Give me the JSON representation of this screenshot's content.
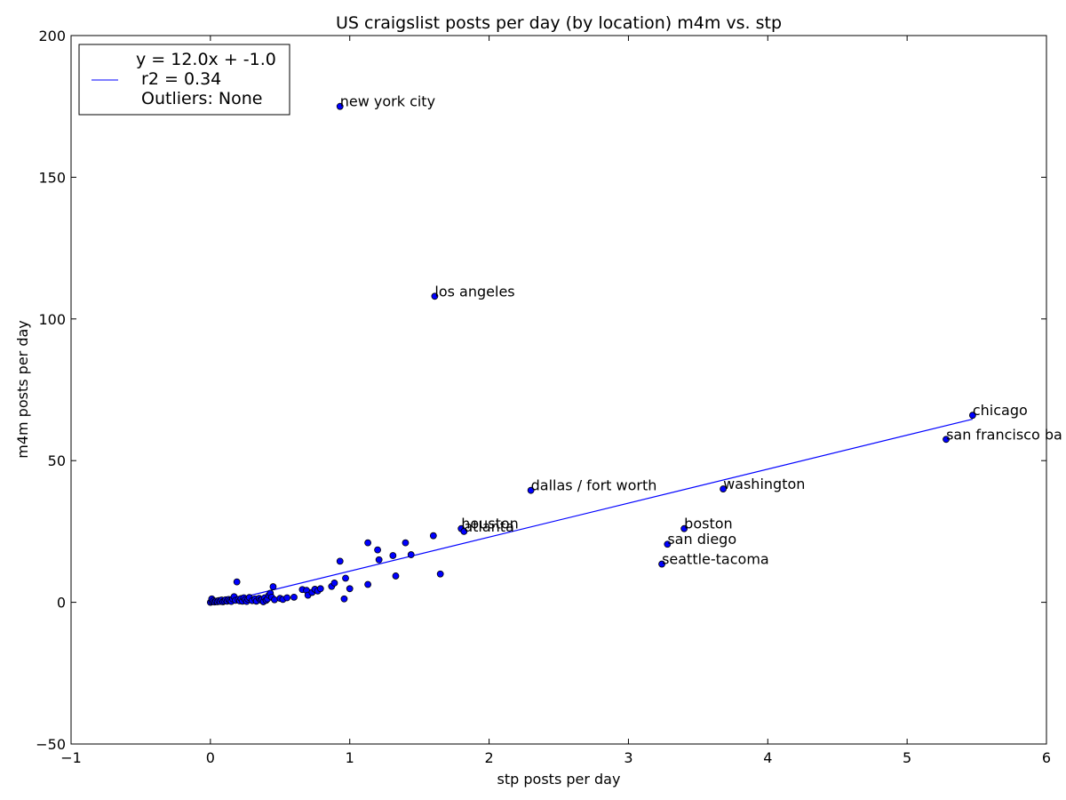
{
  "chart_data": {
    "type": "scatter",
    "title": "US craigslist posts per day (by location) m4m vs. stp",
    "xlabel": "stp posts per day",
    "ylabel": "m4m posts per day",
    "xlim": [
      -1,
      6
    ],
    "ylim": [
      -50,
      200
    ],
    "xticks": [
      -1,
      0,
      1,
      2,
      3,
      4,
      5,
      6
    ],
    "xtick_labels": [
      "−1",
      "0",
      "1",
      "2",
      "3",
      "4",
      "5",
      "6"
    ],
    "yticks": [
      -50,
      0,
      50,
      100,
      150,
      200
    ],
    "ytick_labels": [
      "−50",
      "0",
      "50",
      "100",
      "150",
      "200"
    ],
    "grid": false,
    "point_color": "#0000ff",
    "line_color": "#0000ff",
    "fit_line": {
      "slope": 12.0,
      "intercept": -1.0,
      "x_range": [
        0.0,
        5.47
      ]
    },
    "legend": {
      "position": "top-left",
      "lines": [
        "y = 12.0x + -1.0",
        " r2 = 0.34",
        " Outliers: None"
      ]
    },
    "labeled_points": [
      {
        "label": "new york city",
        "x": 0.93,
        "y": 175.0
      },
      {
        "label": "los angeles",
        "x": 1.61,
        "y": 108.0
      },
      {
        "label": "chicago",
        "x": 5.47,
        "y": 66.0
      },
      {
        "label": "san francisco ba",
        "x": 5.28,
        "y": 57.5
      },
      {
        "label": "washington",
        "x": 3.68,
        "y": 40.0
      },
      {
        "label": "dallas / fort worth",
        "x": 2.3,
        "y": 39.5
      },
      {
        "label": "houston",
        "x": 1.8,
        "y": 26.0
      },
      {
        "label": "atlanta",
        "x": 1.82,
        "y": 25.0
      },
      {
        "label": "boston",
        "x": 3.4,
        "y": 26.0
      },
      {
        "label": "san diego",
        "x": 3.28,
        "y": 20.5
      },
      {
        "label": "seattle-tacoma",
        "x": 3.24,
        "y": 13.5
      }
    ],
    "points": [
      [
        0.0,
        0.0
      ],
      [
        0.01,
        0.3
      ],
      [
        0.01,
        1.2
      ],
      [
        0.02,
        0.5
      ],
      [
        0.03,
        0.1
      ],
      [
        0.04,
        0.4
      ],
      [
        0.05,
        0.2
      ],
      [
        0.06,
        0.6
      ],
      [
        0.07,
        0.3
      ],
      [
        0.08,
        0.8
      ],
      [
        0.09,
        0.2
      ],
      [
        0.1,
        0.5
      ],
      [
        0.11,
        0.9
      ],
      [
        0.12,
        0.4
      ],
      [
        0.13,
        1.0
      ],
      [
        0.14,
        0.6
      ],
      [
        0.15,
        0.3
      ],
      [
        0.16,
        1.2
      ],
      [
        0.17,
        2.0
      ],
      [
        0.18,
        0.7
      ],
      [
        0.19,
        7.2
      ],
      [
        0.2,
        1.0
      ],
      [
        0.21,
        0.5
      ],
      [
        0.22,
        1.3
      ],
      [
        0.23,
        0.4
      ],
      [
        0.24,
        1.6
      ],
      [
        0.25,
        0.9
      ],
      [
        0.26,
        0.3
      ],
      [
        0.27,
        1.1
      ],
      [
        0.28,
        1.7
      ],
      [
        0.3,
        0.6
      ],
      [
        0.32,
        1.2
      ],
      [
        0.33,
        0.4
      ],
      [
        0.35,
        1.4
      ],
      [
        0.36,
        0.8
      ],
      [
        0.37,
        1.0
      ],
      [
        0.38,
        0.2
      ],
      [
        0.39,
        1.6
      ],
      [
        0.4,
        0.7
      ],
      [
        0.41,
        1.2
      ],
      [
        0.42,
        2.5
      ],
      [
        0.43,
        3.2
      ],
      [
        0.44,
        1.8
      ],
      [
        0.45,
        5.5
      ],
      [
        0.46,
        0.9
      ],
      [
        0.5,
        1.4
      ],
      [
        0.52,
        1.0
      ],
      [
        0.55,
        1.6
      ],
      [
        0.6,
        1.8
      ],
      [
        0.66,
        4.5
      ],
      [
        0.69,
        4.2
      ],
      [
        0.7,
        2.5
      ],
      [
        0.73,
        3.5
      ],
      [
        0.75,
        4.6
      ],
      [
        0.77,
        4.0
      ],
      [
        0.79,
        4.8
      ],
      [
        0.87,
        5.6
      ],
      [
        0.89,
        6.8
      ],
      [
        0.93,
        14.5
      ],
      [
        0.96,
        1.2
      ],
      [
        0.97,
        8.5
      ],
      [
        1.0,
        4.8
      ],
      [
        1.13,
        21.0
      ],
      [
        1.13,
        6.3
      ],
      [
        1.2,
        18.5
      ],
      [
        1.21,
        15.0
      ],
      [
        1.31,
        16.5
      ],
      [
        1.33,
        9.3
      ],
      [
        1.4,
        21.0
      ],
      [
        1.44,
        16.8
      ],
      [
        1.6,
        23.5
      ],
      [
        1.65,
        10.0
      ],
      [
        0.93,
        175.0
      ],
      [
        1.61,
        108.0
      ],
      [
        5.47,
        66.0
      ],
      [
        5.28,
        57.5
      ],
      [
        3.68,
        40.0
      ],
      [
        2.3,
        39.5
      ],
      [
        1.8,
        26.0
      ],
      [
        1.82,
        25.0
      ],
      [
        3.4,
        26.0
      ],
      [
        3.28,
        20.5
      ],
      [
        3.24,
        13.5
      ]
    ]
  }
}
